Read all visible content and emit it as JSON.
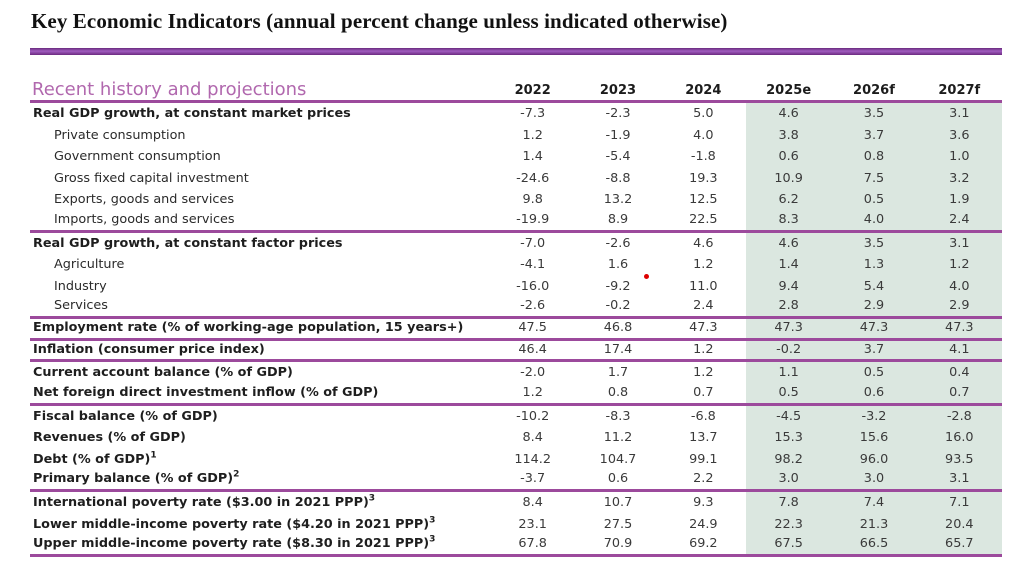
{
  "title": "Key Economic Indicators (annual percent change unless indicated otherwise)",
  "table": {
    "header_label": "Recent history and projections",
    "columns": [
      "2022",
      "2023",
      "2024",
      "2025e",
      "2026f",
      "2027f"
    ],
    "rows": [
      {
        "label": "Real GDP growth, at constant market prices",
        "sup": "",
        "bold": true,
        "indent": false,
        "rule_below": false,
        "values": [
          "-7.3",
          "-2.3",
          "5.0",
          "4.6",
          "3.5",
          "3.1"
        ]
      },
      {
        "label": "Private consumption",
        "sup": "",
        "bold": false,
        "indent": true,
        "rule_below": false,
        "values": [
          "1.2",
          "-1.9",
          "4.0",
          "3.8",
          "3.7",
          "3.6"
        ]
      },
      {
        "label": "Government consumption",
        "sup": "",
        "bold": false,
        "indent": true,
        "rule_below": false,
        "values": [
          "1.4",
          "-5.4",
          "-1.8",
          "0.6",
          "0.8",
          "1.0"
        ]
      },
      {
        "label": "Gross fixed capital investment",
        "sup": "",
        "bold": false,
        "indent": true,
        "rule_below": false,
        "values": [
          "-24.6",
          "-8.8",
          "19.3",
          "10.9",
          "7.5",
          "3.2"
        ]
      },
      {
        "label": "Exports, goods and services",
        "sup": "",
        "bold": false,
        "indent": true,
        "rule_below": false,
        "values": [
          "9.8",
          "13.2",
          "12.5",
          "6.2",
          "0.5",
          "1.9"
        ]
      },
      {
        "label": "Imports, goods and services",
        "sup": "",
        "bold": false,
        "indent": true,
        "rule_below": true,
        "values": [
          "-19.9",
          "8.9",
          "22.5",
          "8.3",
          "4.0",
          "2.4"
        ]
      },
      {
        "label": "Real GDP growth, at constant factor prices",
        "sup": "",
        "bold": true,
        "indent": false,
        "rule_below": false,
        "values": [
          "-7.0",
          "-2.6",
          "4.6",
          "4.6",
          "3.5",
          "3.1"
        ]
      },
      {
        "label": "Agriculture",
        "sup": "",
        "bold": false,
        "indent": true,
        "rule_below": false,
        "values": [
          "-4.1",
          "1.6",
          "1.2",
          "1.4",
          "1.3",
          "1.2"
        ]
      },
      {
        "label": "Industry",
        "sup": "",
        "bold": false,
        "indent": true,
        "rule_below": false,
        "values": [
          "-16.0",
          "-9.2",
          "11.0",
          "9.4",
          "5.4",
          "4.0"
        ]
      },
      {
        "label": "Services",
        "sup": "",
        "bold": false,
        "indent": true,
        "rule_below": true,
        "values": [
          "-2.6",
          "-0.2",
          "2.4",
          "2.8",
          "2.9",
          "2.9"
        ]
      },
      {
        "label": "Employment rate (% of working-age population, 15 years+)",
        "sup": "",
        "bold": true,
        "indent": false,
        "rule_below": true,
        "values": [
          "47.5",
          "46.8",
          "47.3",
          "47.3",
          "47.3",
          "47.3"
        ]
      },
      {
        "label": "Inflation (consumer price index)",
        "sup": "",
        "bold": true,
        "indent": false,
        "rule_below": true,
        "values": [
          "46.4",
          "17.4",
          "1.2",
          "-0.2",
          "3.7",
          "4.1"
        ]
      },
      {
        "label": "Current account balance (% of GDP)",
        "sup": "",
        "bold": true,
        "indent": false,
        "rule_below": false,
        "values": [
          "-2.0",
          "1.7",
          "1.2",
          "1.1",
          "0.5",
          "0.4"
        ]
      },
      {
        "label": "Net foreign direct investment inflow (% of GDP)",
        "sup": "",
        "bold": true,
        "indent": false,
        "rule_below": true,
        "values": [
          "1.2",
          "0.8",
          "0.7",
          "0.5",
          "0.6",
          "0.7"
        ]
      },
      {
        "label": "Fiscal balance (% of GDP)",
        "sup": "",
        "bold": true,
        "indent": false,
        "rule_below": false,
        "values": [
          "-10.2",
          "-8.3",
          "-6.8",
          "-4.5",
          "-3.2",
          "-2.8"
        ]
      },
      {
        "label": "Revenues (% of GDP)",
        "sup": "",
        "bold": true,
        "indent": false,
        "rule_below": false,
        "values": [
          "8.4",
          "11.2",
          "13.7",
          "15.3",
          "15.6",
          "16.0"
        ]
      },
      {
        "label": "Debt (% of GDP)",
        "sup": "1",
        "bold": true,
        "indent": false,
        "rule_below": false,
        "values": [
          "114.2",
          "104.7",
          "99.1",
          "98.2",
          "96.0",
          "93.5"
        ]
      },
      {
        "label": "Primary balance (% of GDP)",
        "sup": "2",
        "bold": true,
        "indent": false,
        "rule_below": true,
        "values": [
          "-3.7",
          "0.6",
          "2.2",
          "3.0",
          "3.0",
          "3.1"
        ]
      },
      {
        "label": "International poverty rate ($3.00 in 2021 PPP)",
        "sup": "3",
        "bold": true,
        "indent": false,
        "rule_below": false,
        "values": [
          "8.4",
          "10.7",
          "9.3",
          "7.8",
          "7.4",
          "7.1"
        ]
      },
      {
        "label": "Lower middle-income poverty rate ($4.20 in 2021 PPP)",
        "sup": "3",
        "bold": true,
        "indent": false,
        "rule_below": false,
        "values": [
          "23.1",
          "27.5",
          "24.9",
          "22.3",
          "21.3",
          "20.4"
        ]
      },
      {
        "label": "Upper middle-income poverty rate ($8.30 in 2021 PPP)",
        "sup": "3",
        "bold": true,
        "indent": false,
        "rule_below": true,
        "values": [
          "67.8",
          "70.9",
          "69.2",
          "67.5",
          "66.5",
          "65.7"
        ]
      }
    ]
  },
  "colors": {
    "accent_bar": "#8a3297",
    "rule": "#9c4a9c",
    "header_label_text": "#b168ae",
    "projection_shade": "#dbe7e0",
    "red_dot": "#dd0000"
  }
}
